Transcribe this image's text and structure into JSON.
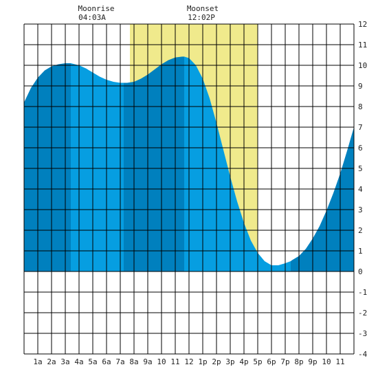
{
  "colors": {
    "daylight": "#F0EA8C",
    "tide_light": "#069EE1",
    "tide_dark": "#0080BE",
    "grid": "#000000",
    "background": "#FFFFFF"
  },
  "moon": {
    "moonrise_label": "Moonrise",
    "moonrise_time": "04:03A",
    "moonset_label": "Moonset",
    "moonset_time": "12:02P"
  },
  "chart_data": {
    "type": "area",
    "title": "",
    "xlabel": "",
    "ylabel": "",
    "xlim": [
      0,
      24
    ],
    "ylim": [
      -4,
      12
    ],
    "grid": true,
    "x_tick_labels": [
      "1a",
      "2a",
      "3a",
      "4a",
      "5a",
      "6a",
      "7a",
      "8a",
      "9a",
      "10",
      "11",
      "12",
      "1p",
      "2p",
      "3p",
      "4p",
      "5p",
      "6p",
      "7p",
      "8p",
      "9p",
      "10",
      "11"
    ],
    "y_tick_labels": [
      "-4",
      "-3",
      "-2",
      "-1",
      "0",
      "1",
      "2",
      "3",
      "4",
      "5",
      "6",
      "7",
      "8",
      "9",
      "10",
      "11",
      "12"
    ],
    "daylight_hours": [
      7.7,
      17.0
    ],
    "moonrise_hour": 4.05,
    "moonset_hour": 12.03,
    "band_boundaries": [
      0,
      3.4,
      7.25,
      11.65,
      19.4,
      24
    ],
    "series": [
      {
        "x": [
          0,
          0.5,
          1,
          1.5,
          2,
          2.5,
          3,
          3.4,
          4,
          4.5,
          5,
          5.5,
          6,
          6.5,
          7,
          7.25,
          7.5,
          8,
          8.5,
          9,
          9.5,
          10,
          10.5,
          11,
          11.5,
          11.65,
          12,
          12.5,
          13,
          13.5,
          14,
          14.5,
          15,
          15.5,
          16,
          16.5,
          17,
          17.5,
          18,
          18.5,
          19,
          19.4,
          19.5,
          20,
          20.5,
          21,
          21.5,
          22,
          22.5,
          23,
          23.5,
          24
        ],
        "y": [
          8.2,
          8.9,
          9.4,
          9.75,
          9.95,
          10.05,
          10.1,
          10.1,
          10.0,
          9.85,
          9.65,
          9.45,
          9.3,
          9.2,
          9.15,
          9.15,
          9.15,
          9.2,
          9.35,
          9.55,
          9.8,
          10.05,
          10.25,
          10.38,
          10.42,
          10.42,
          10.35,
          10.0,
          9.35,
          8.4,
          7.2,
          5.9,
          4.6,
          3.4,
          2.35,
          1.5,
          0.9,
          0.5,
          0.3,
          0.3,
          0.4,
          0.5,
          0.55,
          0.75,
          1.1,
          1.6,
          2.2,
          2.95,
          3.8,
          4.75,
          5.85,
          7.0
        ]
      }
    ]
  }
}
